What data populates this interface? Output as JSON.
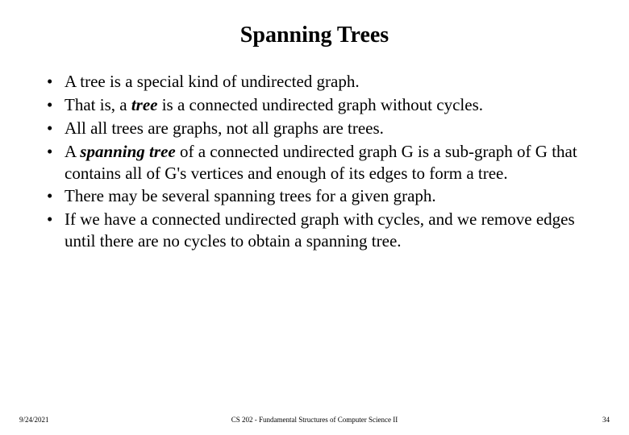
{
  "slide": {
    "title": "Spanning Trees",
    "title_fontsize": 28,
    "body_fontsize": 21,
    "line_height": 1.28,
    "text_color": "#000000",
    "background_color": "#ffffff",
    "bullets": [
      {
        "parts": [
          {
            "text": "A tree is a special kind of undirected graph.",
            "style": "plain"
          }
        ]
      },
      {
        "parts": [
          {
            "text": "That is, a ",
            "style": "plain"
          },
          {
            "text": "tree",
            "style": "bi"
          },
          {
            "text": " is a connected undirected graph without cycles.",
            "style": "plain"
          }
        ]
      },
      {
        "parts": [
          {
            "text": "All all trees are graphs, not all graphs are trees.",
            "style": "plain"
          }
        ]
      },
      {
        "parts": [
          {
            "text": "A ",
            "style": "plain"
          },
          {
            "text": "spanning tree",
            "style": "bi"
          },
          {
            "text": " of a connected undirected graph G is a sub-graph of G that contains all of G's vertices and enough of its edges to form a tree.",
            "style": "plain"
          }
        ]
      },
      {
        "parts": [
          {
            "text": "There may be several spanning trees for a given graph.",
            "style": "plain"
          }
        ]
      },
      {
        "parts": [
          {
            "text": "If we have a connected undirected graph with cycles, and we remove edges until there are no cycles to obtain a spanning tree.",
            "style": "plain"
          }
        ]
      }
    ]
  },
  "footer": {
    "date": "9/24/2021",
    "course": "CS 202 - Fundamental Structures of Computer Science II",
    "page": "34",
    "fontsize": 9
  }
}
